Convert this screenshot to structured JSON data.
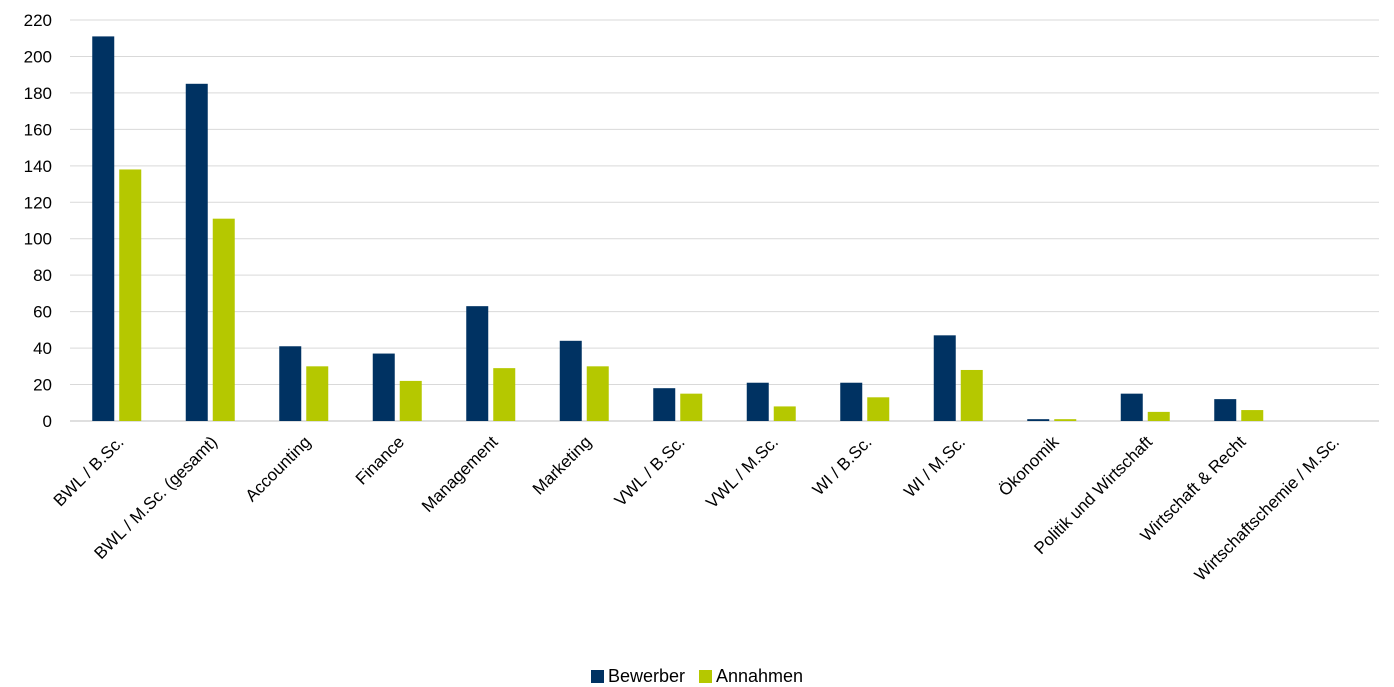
{
  "chart_data": {
    "type": "bar",
    "categories": [
      "BWL / B.Sc.",
      "BWL / M.Sc. (gesamt)",
      "Accounting",
      "Finance",
      "Management",
      "Marketing",
      "VWL / B.Sc.",
      "VWL / M.Sc.",
      "WI / B.Sc.",
      "WI / M.Sc.",
      "Ökonomik",
      "Politik und Wirtschaft",
      "Wirtschaft & Recht",
      "Wirtschaftschemie / M.Sc."
    ],
    "series": [
      {
        "name": "Bewerber",
        "color": "#003262",
        "values": [
          211,
          185,
          41,
          37,
          63,
          44,
          18,
          21,
          21,
          47,
          1,
          15,
          12,
          0
        ]
      },
      {
        "name": "Annahmen",
        "color": "#b5c800",
        "values": [
          138,
          111,
          30,
          22,
          29,
          30,
          15,
          8,
          13,
          28,
          1,
          5,
          6,
          0
        ]
      }
    ],
    "yticks": [
      "0",
      "20",
      "40",
      "60",
      "80",
      "100",
      "120",
      "140",
      "160",
      "180",
      "200",
      "220"
    ],
    "ylim": [
      0,
      220
    ],
    "grid": true,
    "legend_position": "bottom"
  }
}
